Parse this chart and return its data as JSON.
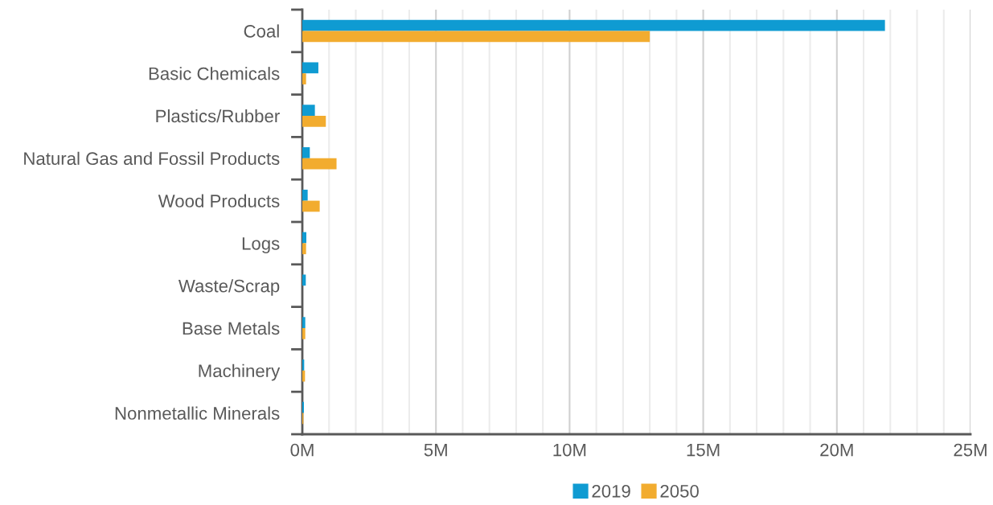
{
  "chart_data": {
    "type": "bar",
    "orientation": "horizontal",
    "categories": [
      "Coal",
      "Basic Chemicals",
      "Plastics/Rubber",
      "Natural Gas and Fossil Products",
      "Wood Products",
      "Logs",
      "Waste/Scrap",
      "Base Metals",
      "Machinery",
      "Nonmetallic Minerals"
    ],
    "series": [
      {
        "name": "2019",
        "color": "#0f9bd2",
        "values": [
          21.8,
          0.6,
          0.47,
          0.28,
          0.2,
          0.15,
          0.13,
          0.11,
          0.07,
          0.06
        ]
      },
      {
        "name": "2050",
        "color": "#f2ac2f",
        "values": [
          13.0,
          0.14,
          0.88,
          1.28,
          0.65,
          0.14,
          0,
          0.11,
          0.1,
          0.04
        ]
      }
    ],
    "xlim": [
      0,
      25
    ],
    "xticks": [
      {
        "value": 0,
        "label": "0M"
      },
      {
        "value": 1,
        "label": null
      },
      {
        "value": 2,
        "label": null
      },
      {
        "value": 3,
        "label": null
      },
      {
        "value": 4,
        "label": null
      },
      {
        "value": 5,
        "label": "5M"
      },
      {
        "value": 6,
        "label": null
      },
      {
        "value": 7,
        "label": null
      },
      {
        "value": 8,
        "label": null
      },
      {
        "value": 9,
        "label": null
      },
      {
        "value": 10,
        "label": "10M"
      },
      {
        "value": 11,
        "label": null
      },
      {
        "value": 12,
        "label": null
      },
      {
        "value": 13,
        "label": null
      },
      {
        "value": 14,
        "label": null
      },
      {
        "value": 15,
        "label": "15M"
      },
      {
        "value": 16,
        "label": null
      },
      {
        "value": 17,
        "label": null
      },
      {
        "value": 18,
        "label": null
      },
      {
        "value": 19,
        "label": null
      },
      {
        "value": 20,
        "label": "20M"
      },
      {
        "value": 21,
        "label": null
      },
      {
        "value": 22,
        "label": null
      },
      {
        "value": 23,
        "label": null
      },
      {
        "value": 24,
        "label": null
      },
      {
        "value": 25,
        "label": "25M"
      }
    ],
    "grid": "x",
    "legend": "bottom"
  }
}
